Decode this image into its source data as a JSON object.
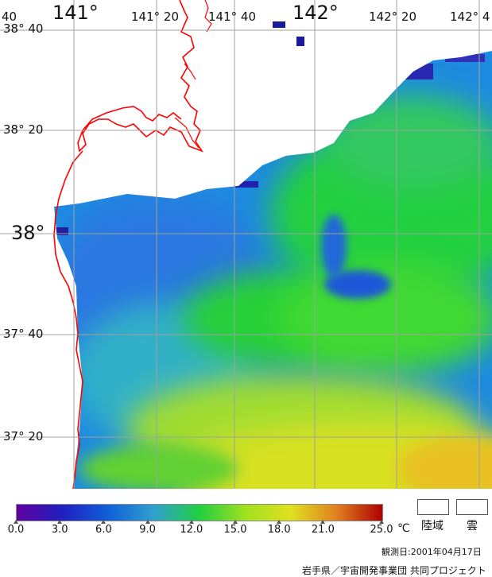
{
  "map": {
    "lon_labels": {
      "lon_140_40": "40",
      "lon_141": "141°",
      "lon_141_20": "141° 20",
      "lon_141_40": "141° 40",
      "lon_142": "142°",
      "lon_142_20": "142° 20",
      "lon_142_40": "142° 4"
    },
    "lat_labels": {
      "lat_38_40": "38° 40",
      "lat_38_20": "38° 20",
      "lat_38": "38°",
      "lat_37_40": "37° 40",
      "lat_37_20": "37° 20"
    },
    "colors": {
      "coast": "#ff0000",
      "grid": "#a0a0a0",
      "land": "#ffffff"
    }
  },
  "colorbar": {
    "ticks": [
      "0.0",
      "3.0",
      "6.0",
      "9.0",
      "12.0",
      "15.0",
      "18.0",
      "21.0",
      "25.0"
    ],
    "unit": "℃",
    "gradient": [
      "#6000a0",
      "#2020c0",
      "#1060d8",
      "#30a0d0",
      "#20d040",
      "#a0e020",
      "#e0e020",
      "#e08020",
      "#b00000"
    ]
  },
  "legend": {
    "land_label": "陸域",
    "cloud_label": "雲"
  },
  "observation_date": "観測日:2001年04月17日",
  "credit": "岩手県／宇宙開発事業団 共同プロジェクト"
}
